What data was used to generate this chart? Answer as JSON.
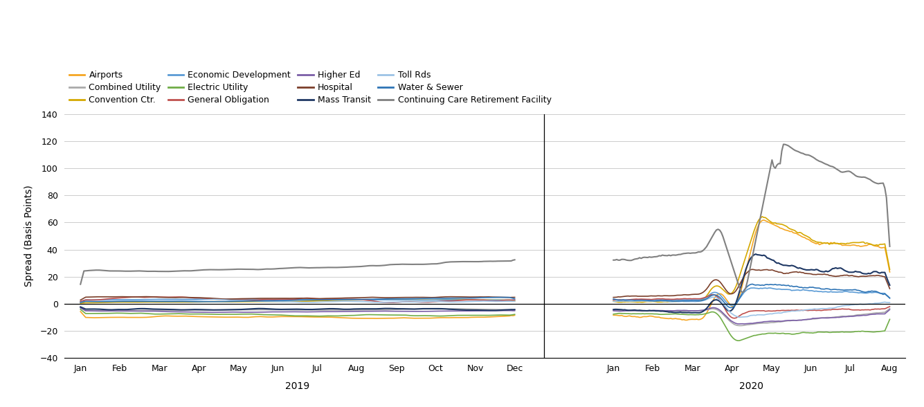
{
  "title": "",
  "ylabel": "Spread (Basis Points)",
  "ylim": [
    -40,
    140
  ],
  "yticks": [
    -40,
    -20,
    0,
    20,
    40,
    60,
    80,
    100,
    120,
    140
  ],
  "series": {
    "Airports": {
      "color": "#F5A623",
      "lw": 1.2
    },
    "Combined Utility": {
      "color": "#AAAAAA",
      "lw": 1.2
    },
    "Convention Ctr.": {
      "color": "#D4A800",
      "lw": 1.2
    },
    "Economic Development": {
      "color": "#5B9BD5",
      "lw": 1.2
    },
    "Electric Utility": {
      "color": "#70AD47",
      "lw": 1.2
    },
    "General Obligation": {
      "color": "#C0504D",
      "lw": 1.2
    },
    "Higher Ed": {
      "color": "#7B5EA7",
      "lw": 1.2
    },
    "Hospital": {
      "color": "#7B3F2A",
      "lw": 1.2
    },
    "Mass Transit": {
      "color": "#1F3864",
      "lw": 1.5
    },
    "Toll Rds": {
      "color": "#9DC3E6",
      "lw": 1.2
    },
    "Water & Sewer": {
      "color": "#2E74B5",
      "lw": 1.2
    },
    "Continuing Care Retirement Facility": {
      "color": "#808080",
      "lw": 1.5
    }
  },
  "legend_order": [
    "Airports",
    "Combined Utility",
    "Convention Ctr.",
    "Economic Development",
    "Electric Utility",
    "General Obligation",
    "Higher Ed",
    "Hospital",
    "Mass Transit",
    "Toll Rds",
    "Water & Sewer",
    "Continuing Care Retirement Facility"
  ],
  "x_labels_2019": [
    "Jan",
    "Feb",
    "Mar",
    "Apr",
    "May",
    "Jun",
    "Jul",
    "Aug",
    "Sep",
    "Oct",
    "Nov",
    "Dec"
  ],
  "x_labels_2020": [
    "Jan",
    "Feb",
    "Mar",
    "Apr",
    "May",
    "Jun",
    "Jul",
    "Aug"
  ],
  "background_color": "#FFFFFF"
}
